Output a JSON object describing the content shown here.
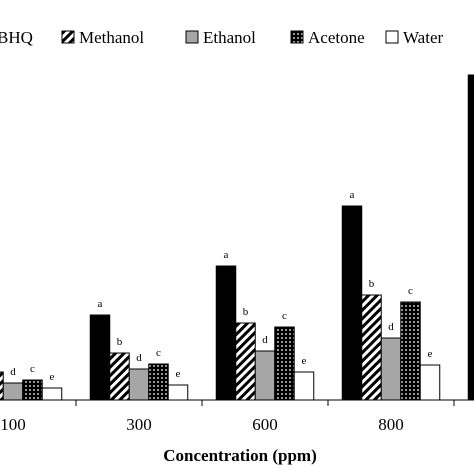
{
  "chart_data": {
    "type": "bar",
    "x_label": "Concentration (ppm)",
    "categories": [
      "100",
      "300",
      "600",
      "800",
      null
    ],
    "series": [
      {
        "name": "BHQ",
        "color": "#000000",
        "pattern": "solid",
        "values": [
          null,
          85,
          134,
          194,
          325
        ],
        "labels": [
          null,
          "a",
          "a",
          "a",
          null
        ]
      },
      {
        "name": "Methanol",
        "color": "#000000",
        "pattern": "hatch",
        "values": [
          28,
          47,
          77,
          105,
          null
        ],
        "labels": [
          null,
          "b",
          "b",
          "b",
          null
        ]
      },
      {
        "name": "Ethanol",
        "color": "#a6a6a6",
        "pattern": "solid",
        "values": [
          17,
          31,
          49,
          62,
          null
        ],
        "labels": [
          "d",
          "d",
          "d",
          "d",
          null
        ]
      },
      {
        "name": "Acetone",
        "color": "#000000",
        "pattern": "dots",
        "values": [
          20,
          36,
          73,
          98,
          null
        ],
        "labels": [
          "c",
          "c",
          "c",
          "c",
          null
        ]
      },
      {
        "name": "Water",
        "color": "#ffffff",
        "pattern": "solid",
        "values": [
          12,
          15,
          28,
          35,
          null
        ],
        "labels": [
          "e",
          "e",
          "e",
          "e",
          null
        ]
      }
    ]
  }
}
